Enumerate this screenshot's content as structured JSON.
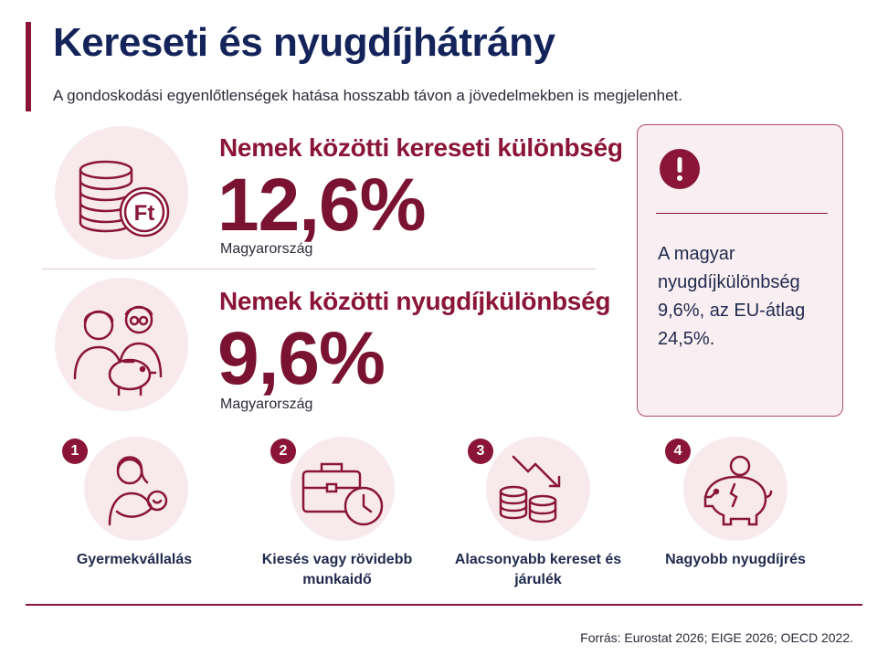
{
  "header": {
    "title": "Kereseti és nyugdíjhátrány",
    "subtitle": "A gondoskodási egyenlőtlenségek hatása hosszabb távon a jövedelmekben is megjelenhet."
  },
  "stats": [
    {
      "label": "Nemek közötti kereseti különbség",
      "value": "12,6%",
      "region": "Magyarország",
      "icon": "coins-forint-icon"
    },
    {
      "label": "Nemek közötti nyugdíjkülönbség",
      "value": "9,6%",
      "region": "Magyarország",
      "icon": "elderly-couple-piggybank-icon"
    }
  ],
  "callout": {
    "icon": "exclamation-icon",
    "text": "A magyar nyugdíjkülönbség 9,6%, az EU-átlag 24,5%."
  },
  "factors": [
    {
      "number": "1",
      "label": "Gyermekvállalás",
      "icon": "mother-baby-icon"
    },
    {
      "number": "2",
      "label": "Kiesés vagy rövidebb munkaidő",
      "icon": "briefcase-clock-icon"
    },
    {
      "number": "3",
      "label": "Alacsonyabb kereset és járulék",
      "icon": "coins-down-arrow-icon"
    },
    {
      "number": "4",
      "label": "Nagyobb nyugdíjrés",
      "icon": "piggybank-crack-icon"
    }
  ],
  "source": "Forrás: Eurostat 2026; EIGE 2026; OECD 2022.",
  "colors": {
    "accent": "#8a1538",
    "title": "#14245a",
    "circle": "#f7e9ec",
    "card": "#f9eef1"
  }
}
